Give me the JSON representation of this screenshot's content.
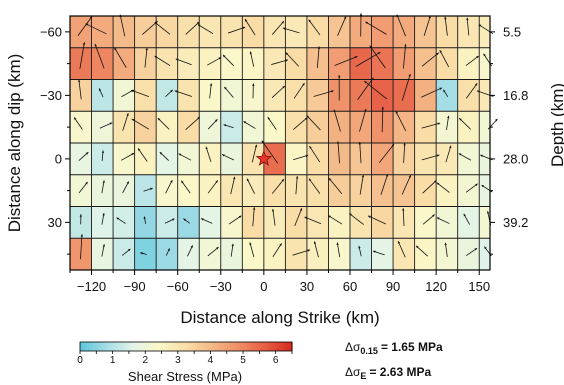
{
  "chart_data": {
    "type": "heatmap",
    "xlabel": "Distance along Strike (km)",
    "ylabel": "Distance along dip (km)",
    "right_label": "Depth (km)",
    "x_ticks": [
      -120,
      -90,
      -60,
      -30,
      0,
      30,
      60,
      90,
      120,
      150
    ],
    "y_ticks": [
      -60,
      -30,
      0,
      30
    ],
    "depth_ticks": [
      {
        "y": -60,
        "label": "5.5"
      },
      {
        "y": -30,
        "label": "16.8"
      },
      {
        "y": 0,
        "label": "28.0"
      },
      {
        "y": 30,
        "label": "39.2"
      }
    ],
    "xlim": [
      -135,
      157.5
    ],
    "ylim": [
      -67.5,
      52.5
    ],
    "cell_size_km": [
      15,
      15
    ],
    "hypocenter": {
      "x": 0,
      "y": 0
    },
    "colorbar": {
      "label": "Shear Stress (MPa)",
      "min": 0,
      "max": 6.5,
      "ticks": [
        "0",
        "1",
        "2",
        "3",
        "4",
        "5",
        "6"
      ],
      "colors": [
        "#5bc7dc",
        "#a5dde5",
        "#e2f4e8",
        "#fbf7c8",
        "#f9dea8",
        "#f4b888",
        "#ef8d66",
        "#e65d44",
        "#d42a1e"
      ]
    },
    "rows_y": [
      -60,
      -45,
      -30,
      -15,
      0,
      15,
      30,
      45
    ],
    "columns_x": [
      -127.5,
      -112.5,
      -97.5,
      -82.5,
      -67.5,
      -52.5,
      -37.5,
      -22.5,
      -7.5,
      7.5,
      22.5,
      37.5,
      52.5,
      67.5,
      82.5,
      97.5,
      112.5,
      127.5,
      142.5,
      157.5
    ],
    "stress_grid": [
      [
        4.5,
        4.3,
        4.0,
        3.6,
        3.4,
        3.2,
        3.0,
        3.1,
        3.3,
        3.0,
        2.9,
        3.3,
        3.8,
        4.3,
        4.6,
        4.3,
        3.8,
        3.3,
        3.0,
        2.8
      ],
      [
        5.2,
        5.0,
        4.3,
        3.5,
        3.1,
        2.8,
        2.6,
        2.4,
        2.5,
        2.9,
        3.3,
        3.9,
        4.6,
        5.5,
        5.3,
        4.6,
        3.9,
        3.3,
        2.6,
        2.3
      ],
      [
        3.5,
        1.1,
        2.1,
        3.2,
        1.2,
        3.1,
        2.4,
        2.1,
        2.3,
        2.9,
        3.2,
        3.7,
        4.8,
        5.2,
        5.6,
        5.4,
        4.2,
        0.8,
        3.2,
        2.9
      ],
      [
        2.3,
        2.0,
        3.1,
        3.5,
        2.6,
        3.3,
        2.0,
        1.3,
        2.1,
        2.4,
        3.2,
        3.6,
        4.2,
        4.4,
        4.8,
        4.1,
        3.3,
        2.2,
        2.6,
        2.1
      ],
      [
        1.8,
        1.3,
        2.3,
        2.6,
        1.7,
        2.1,
        2.6,
        1.9,
        3.1,
        5.4,
        2.5,
        3.3,
        4.0,
        3.8,
        4.4,
        3.5,
        3.1,
        2.9,
        2.1,
        1.9
      ],
      [
        2.1,
        1.9,
        1.9,
        1.1,
        2.3,
        2.4,
        2.6,
        3.0,
        2.8,
        3.2,
        3.1,
        3.2,
        3.6,
        3.5,
        3.9,
        3.8,
        3.3,
        2.6,
        2.2,
        1.8
      ],
      [
        1.2,
        1.6,
        1.4,
        0.6,
        1.3,
        0.7,
        1.7,
        2.3,
        3.3,
        2.8,
        3.3,
        3.0,
        2.6,
        3.1,
        3.4,
        3.0,
        2.4,
        2.1,
        1.7,
        2.2
      ],
      [
        4.7,
        1.8,
        1.3,
        0.4,
        0.7,
        1.7,
        2.1,
        1.9,
        2.4,
        2.6,
        3.1,
        2.7,
        2.3,
        1.3,
        1.7,
        3.0,
        2.5,
        2.2,
        1.9,
        1.6
      ]
    ],
    "grid": true,
    "annotations": {
      "ds015_sigma": "Δσ",
      "ds015_sub": "0.15",
      "ds015_value": "=  1.65 MPa",
      "dse_sigma": "Δσ",
      "dse_sub": "E",
      "dse_value": "= 2.63 MPa"
    }
  }
}
